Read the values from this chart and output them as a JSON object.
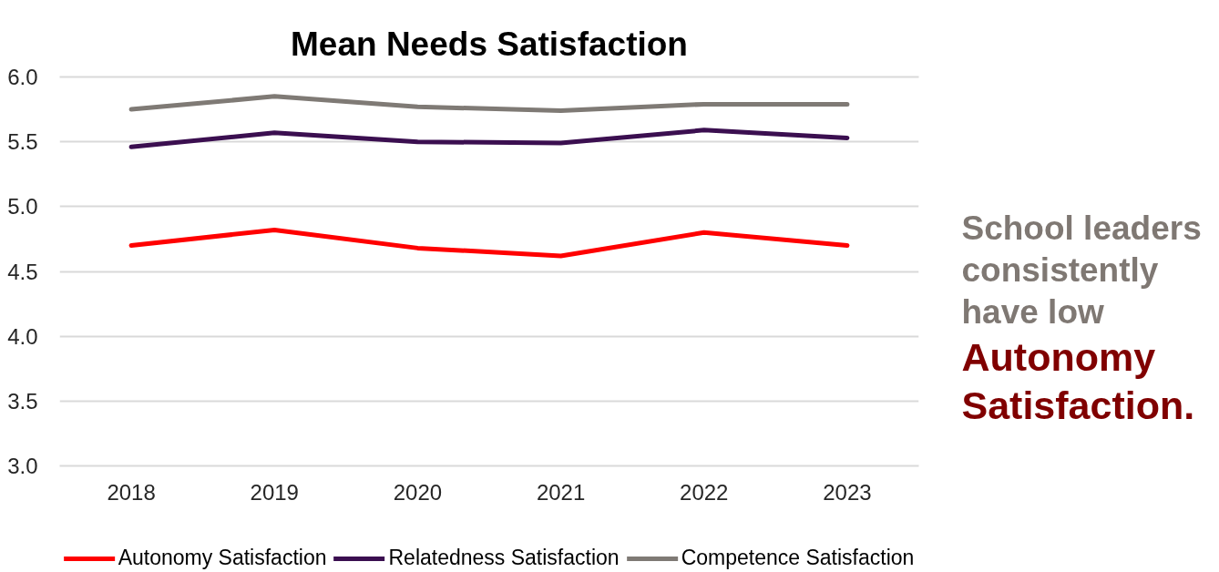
{
  "chart_data": {
    "type": "line",
    "title": "Mean Needs Satisfaction",
    "categories": [
      "2018",
      "2019",
      "2020",
      "2021",
      "2022",
      "2023"
    ],
    "series": [
      {
        "name": "Autonomy Satisfaction",
        "color": "#ff0000",
        "values": [
          4.7,
          4.82,
          4.68,
          4.62,
          4.8,
          4.7
        ]
      },
      {
        "name": "Relatedness Satisfaction",
        "color": "#3b0f50",
        "values": [
          5.46,
          5.57,
          5.5,
          5.49,
          5.59,
          5.53
        ]
      },
      {
        "name": "Competence Satisfaction",
        "color": "#7f7a75",
        "values": [
          5.75,
          5.85,
          5.77,
          5.74,
          5.79,
          5.79
        ]
      }
    ],
    "ylim": [
      3,
      6
    ],
    "yticks": [
      {
        "value": 3,
        "label": "3.0"
      },
      {
        "value": 3.5,
        "label": "3.5"
      },
      {
        "value": 4,
        "label": "4.0"
      },
      {
        "value": 4.5,
        "label": "4.5"
      },
      {
        "value": 5,
        "label": "5.0"
      },
      {
        "value": 5.5,
        "label": "5.5"
      },
      {
        "value": 6,
        "label": "6.0"
      }
    ],
    "grid": "y",
    "legend": "bottom",
    "annotations": [
      "School leaders consistently have low",
      "Autonomy Satisfaction."
    ]
  }
}
